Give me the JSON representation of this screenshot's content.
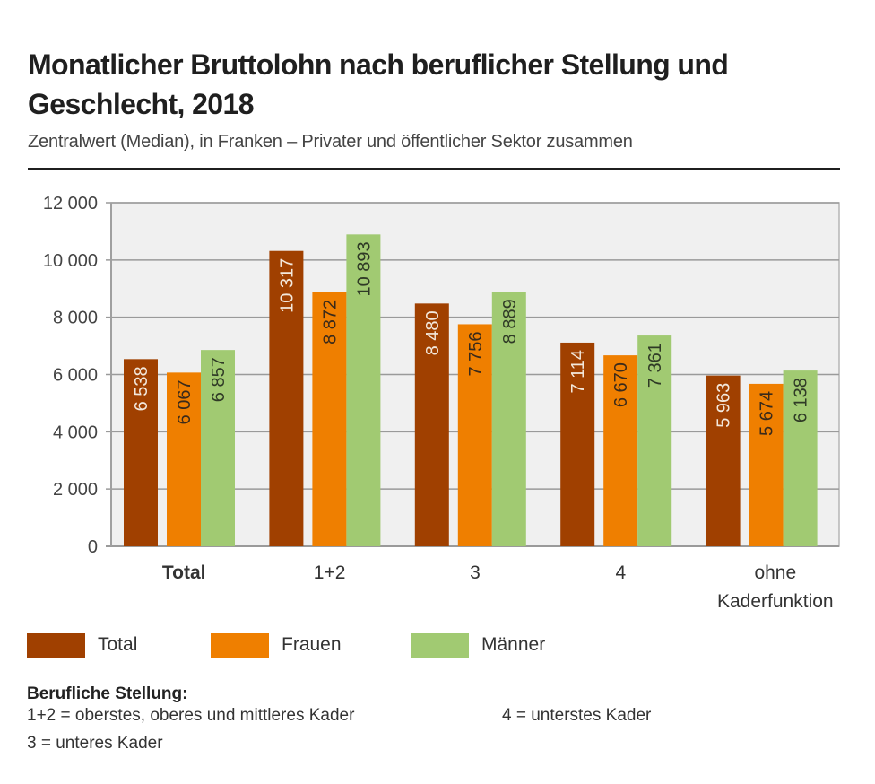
{
  "header": {
    "title": "Monatlicher Bruttolohn nach beruflicher Stellung und Geschlecht, 2018",
    "subtitle": "Zentralwert (Median), in Franken – Privater und öffentlicher Sektor zusammen"
  },
  "chart_data": {
    "type": "bar",
    "title": "Monatlicher Bruttolohn nach beruflicher Stellung und Geschlecht, 2018",
    "subtitle": "Zentralwert (Median), in Franken – Privater und öffentlicher Sektor zusammen",
    "xlabel": "",
    "ylabel": "",
    "ylim": [
      0,
      12000
    ],
    "yticks": [
      0,
      2000,
      4000,
      6000,
      8000,
      10000,
      12000
    ],
    "ytick_labels": [
      "0",
      "2 000",
      "4 000",
      "6 000",
      "8 000",
      "10 000",
      "12 000"
    ],
    "grid": true,
    "categories": [
      "Total",
      "1+2",
      "3",
      "4",
      "ohne Kaderfunktion"
    ],
    "category_lines": [
      [
        "Total"
      ],
      [
        "1+2"
      ],
      [
        "3"
      ],
      [
        "4"
      ],
      [
        "ohne",
        "Kaderfunktion"
      ]
    ],
    "bold_categories": [
      "Total"
    ],
    "series": [
      {
        "name": "Total",
        "color": "#a04000",
        "label_color": "#f3e8dc",
        "values": [
          6538,
          10317,
          8480,
          7114,
          5963
        ],
        "labels": [
          "6 538",
          "10 317",
          "8 480",
          "7 114",
          "5 963"
        ]
      },
      {
        "name": "Frauen",
        "color": "#ef7f00",
        "label_color": "#3a2a1a",
        "values": [
          6067,
          8872,
          7756,
          6670,
          5674
        ],
        "labels": [
          "6 067",
          "8 872",
          "7 756",
          "6 670",
          "5 674"
        ]
      },
      {
        "name": "Männer",
        "color": "#a1ca72",
        "label_color": "#2f3a26",
        "values": [
          6857,
          10893,
          8889,
          7361,
          6138
        ],
        "labels": [
          "6 857",
          "10 893",
          "8 889",
          "7 361",
          "6 138"
        ]
      }
    ],
    "legend_position": "bottom-left",
    "plot_background": "#f0f0f0",
    "grid_color": "#9a9a9a"
  },
  "legend": [
    {
      "label": "Total",
      "color": "#a04000"
    },
    {
      "label": "Frauen",
      "color": "#ef7f00"
    },
    {
      "label": "Männer",
      "color": "#a1ca72"
    }
  ],
  "notes": {
    "heading": "Berufliche Stellung:",
    "items": [
      "1+2 = oberstes, oberes und mittleres Kader",
      "4 = unterstes Kader",
      "3 = unteres Kader"
    ]
  }
}
